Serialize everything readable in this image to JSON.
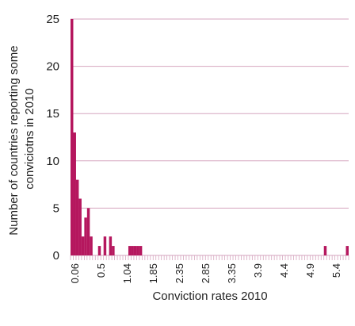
{
  "chart_data": {
    "type": "bar",
    "xlabel": "Conviction rates 2010",
    "ylabel": "Number of countries reporting some conviciotns in 2010",
    "ylim": [
      0,
      25
    ],
    "yticks": [
      0,
      5,
      10,
      15,
      20,
      25
    ],
    "xticks": [
      "0.06",
      "0.5",
      "1.04",
      "1.85",
      "2.35",
      "2.85",
      "3.35",
      "3.9",
      "4.4",
      "4.9",
      "5.4"
    ],
    "bin_count": 101,
    "bin_values": [
      25,
      13,
      8,
      6,
      2,
      4,
      5,
      2,
      0,
      0,
      1,
      0,
      2,
      0,
      2,
      1,
      0,
      0,
      0,
      0,
      0,
      1,
      1,
      1,
      1,
      1,
      0,
      0,
      0,
      0,
      0,
      0,
      0,
      0,
      0,
      0,
      0,
      0,
      0,
      0,
      0,
      0,
      0,
      0,
      0,
      0,
      0,
      0,
      0,
      0,
      0,
      0,
      0,
      0,
      0,
      0,
      0,
      0,
      0,
      0,
      0,
      0,
      0,
      0,
      0,
      0,
      0,
      0,
      0,
      0,
      0,
      0,
      0,
      0,
      0,
      0,
      0,
      0,
      0,
      0,
      0,
      0,
      0,
      0,
      0,
      0,
      0,
      0,
      0,
      0,
      0,
      0,
      1,
      0,
      0,
      0,
      0,
      0,
      0,
      0,
      1
    ],
    "grid": true,
    "bar_color": "#b5175e",
    "grid_color": "#d6a6bf"
  }
}
